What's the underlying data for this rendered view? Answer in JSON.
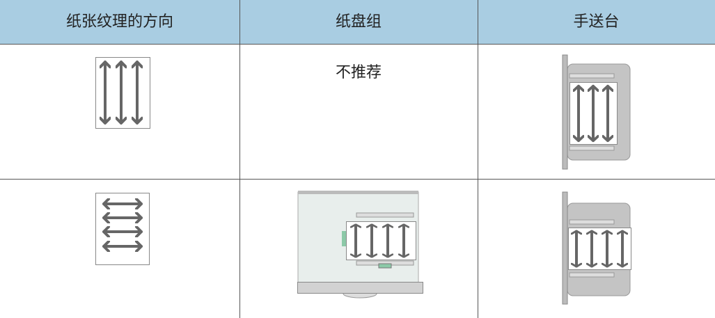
{
  "table": {
    "header": [
      "纸张纹理的方向",
      "纸盘组",
      "手送台"
    ],
    "rows": [
      {
        "paper_tray": "不推荐"
      }
    ]
  }
}
